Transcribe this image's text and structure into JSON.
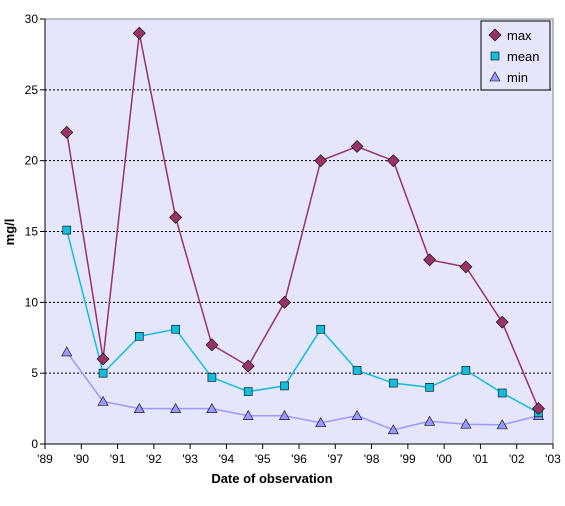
{
  "chart_data": {
    "type": "line",
    "xlabel": "Date of observation",
    "ylabel": "mg/l",
    "ylim": [
      0,
      30
    ],
    "yticks": [
      0,
      5,
      10,
      15,
      20,
      25,
      30
    ],
    "xlim": [
      1989,
      2003
    ],
    "xtick_labels": [
      "'89",
      "'90",
      "'91",
      "'92",
      "'93",
      "'94",
      "'95",
      "'96",
      "'97",
      "'98",
      "'99",
      "'00",
      "'01",
      "'02",
      "'03"
    ],
    "x": [
      1989.6,
      1990.6,
      1991.6,
      1992.6,
      1993.6,
      1994.6,
      1995.6,
      1996.6,
      1997.6,
      1998.6,
      1999.6,
      2000.6,
      2001.6,
      2002.6
    ],
    "grid": "horizontal dotted",
    "legend_position": "top-right",
    "plot_background": "#e6e6fa",
    "series": [
      {
        "name": "max",
        "marker": "diamond",
        "color": "#993366",
        "values": [
          22,
          6,
          29,
          16,
          7,
          5.5,
          10,
          20,
          21,
          20,
          13,
          12.5,
          8.6,
          2.5
        ]
      },
      {
        "name": "mean",
        "marker": "square",
        "color": "#0fbfdd",
        "values": [
          15.1,
          5,
          7.6,
          8.1,
          4.7,
          3.7,
          4.1,
          8.1,
          5.2,
          4.3,
          4,
          5.2,
          3.6,
          2.2
        ]
      },
      {
        "name": "min",
        "marker": "triangle",
        "color": "#9999ff",
        "values": [
          6.5,
          3,
          2.5,
          2.5,
          2.5,
          2,
          2,
          1.5,
          2,
          1,
          1.6,
          1.4,
          1.35,
          2
        ]
      }
    ]
  }
}
